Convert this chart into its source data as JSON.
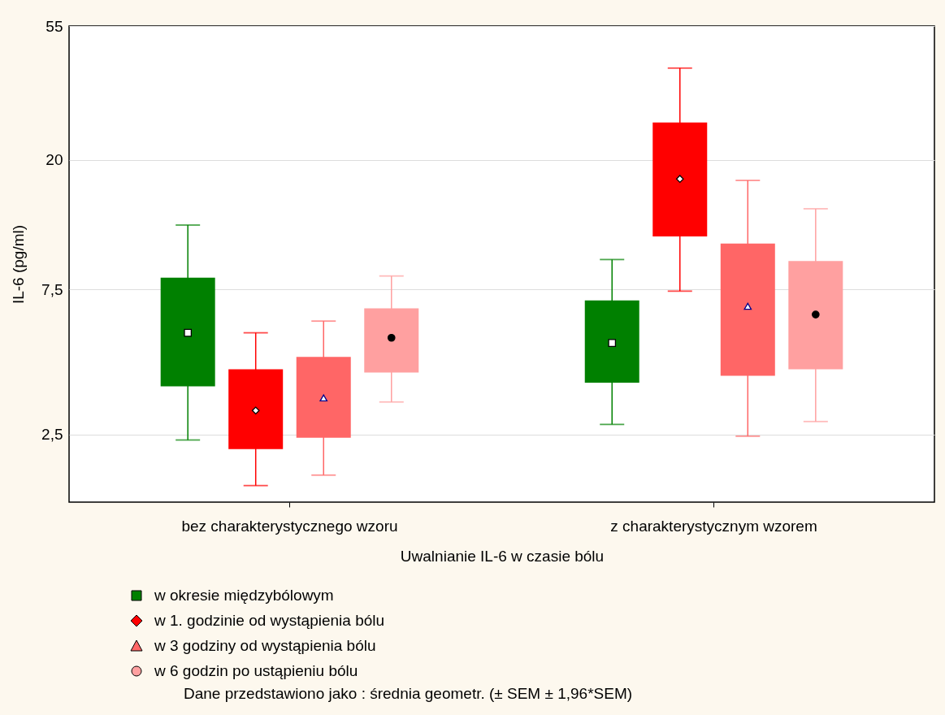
{
  "chart_data": {
    "type": "box",
    "xlabel": "Uwalnianie IL-6 w czasie bólu",
    "ylabel": "IL-6 (pg/ml)",
    "categories": [
      "bez charakterystycznego wzoru",
      "z charakterystycznym wzorem"
    ],
    "log": true,
    "ylim": [
      1.5,
      55
    ],
    "yticks": [
      {
        "value": 2.5,
        "label": "2,5"
      },
      {
        "value": 7.5,
        "label": "7,5"
      },
      20,
      55
    ],
    "grid": "y",
    "legend": "bottom",
    "series": [
      {
        "name": "w okresie międzybólowym",
        "color": "#008000",
        "marker": "square",
        "boxes": [
          {
            "low": 2.4,
            "q1": 3.6,
            "median": 5.4,
            "q3": 8.2,
            "high": 12.2
          },
          {
            "low": 2.7,
            "q1": 3.7,
            "median": 5.0,
            "q3": 6.9,
            "high": 9.4
          }
        ]
      },
      {
        "name": "w 1. godzinie od wystąpienia bólu",
        "color": "#ff0000",
        "marker": "diamond",
        "boxes": [
          {
            "low": 1.7,
            "q1": 2.24,
            "median": 3.0,
            "q3": 4.1,
            "high": 5.4
          },
          {
            "low": 7.4,
            "q1": 11.2,
            "median": 17.3,
            "q3": 26.5,
            "high": 40
          }
        ]
      },
      {
        "name": "w 3 godziny od wystąpienia bólu",
        "color": "#ff6666",
        "marker": "triangle",
        "boxes": [
          {
            "low": 1.84,
            "q1": 2.44,
            "median": 3.3,
            "q3": 4.5,
            "high": 5.9
          },
          {
            "low": 2.47,
            "q1": 3.9,
            "median": 6.6,
            "q3": 10.6,
            "high": 17.1
          }
        ]
      },
      {
        "name": "w 6 godzin po ustąpieniu bólu",
        "color": "#ffa0a0",
        "marker": "circle",
        "boxes": [
          {
            "low": 3.2,
            "q1": 4.0,
            "median": 5.2,
            "q3": 6.5,
            "high": 8.3
          },
          {
            "low": 2.76,
            "q1": 4.1,
            "median": 6.2,
            "q3": 9.3,
            "high": 13.8
          }
        ]
      }
    ],
    "annotations": [
      "Dane przedstawiono jako : średnia geometr. (± SEM ± 1,96*SEM)"
    ]
  }
}
